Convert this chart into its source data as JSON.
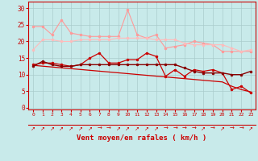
{
  "bg_color": "#c8eaea",
  "grid_color": "#aacccc",
  "xlabel": "Vent moyen/en rafales ( km/h )",
  "xlabel_color": "#cc0000",
  "tick_color": "#cc0000",
  "yticks": [
    0,
    5,
    10,
    15,
    20,
    25,
    30
  ],
  "ylim": [
    -0.5,
    32
  ],
  "xlim": [
    -0.5,
    23.5
  ],
  "arrows": [
    "↗",
    "↗",
    "↗",
    "↗",
    "↗",
    "↗",
    "↗",
    "→",
    "→",
    "↗",
    "↗",
    "↗",
    "↗",
    "↗",
    "→",
    "→",
    "→",
    "→",
    "↗",
    "→",
    "↗",
    "→",
    "→",
    "↗"
  ],
  "series": [
    {
      "color": "#ff9999",
      "linewidth": 0.8,
      "marker": "o",
      "markersize": 2.0,
      "y": [
        24.5,
        24.5,
        22.0,
        26.5,
        22.5,
        22.0,
        21.5,
        21.5,
        21.5,
        21.5,
        29.5,
        22.0,
        21.0,
        22.0,
        18.0,
        18.5,
        19.0,
        20.0,
        19.5,
        19.0,
        17.0,
        17.0,
        17.0,
        17.0
      ]
    },
    {
      "color": "#ffbbbb",
      "linewidth": 0.8,
      "marker": "o",
      "markersize": 2.0,
      "y": [
        17.5,
        20.5,
        20.5,
        20.0,
        20.0,
        20.5,
        20.5,
        20.5,
        20.5,
        21.0,
        21.0,
        21.0,
        21.0,
        20.5,
        20.5,
        20.5,
        19.5,
        19.0,
        19.0,
        19.0,
        19.0,
        18.0,
        17.0,
        17.5
      ]
    },
    {
      "color": "#cc0000",
      "linewidth": 0.9,
      "marker": "o",
      "markersize": 2.0,
      "y": [
        13.0,
        13.5,
        13.5,
        13.0,
        12.5,
        13.0,
        15.0,
        16.5,
        13.5,
        13.5,
        14.5,
        14.5,
        16.5,
        15.5,
        9.5,
        11.5,
        9.5,
        11.5,
        11.0,
        11.5,
        10.5,
        5.5,
        6.5,
        4.5
      ]
    },
    {
      "color": "#cc0000",
      "linewidth": 0.9,
      "marker": null,
      "markersize": 0,
      "y": [
        12.8,
        12.55,
        12.3,
        12.05,
        11.8,
        11.55,
        11.3,
        11.05,
        10.8,
        10.55,
        10.3,
        10.05,
        9.8,
        9.55,
        9.3,
        9.05,
        8.8,
        8.55,
        8.3,
        8.05,
        7.8,
        6.5,
        5.5,
        4.8
      ]
    },
    {
      "color": "#880000",
      "linewidth": 1.0,
      "marker": "o",
      "markersize": 2.0,
      "y": [
        12.5,
        14.0,
        13.0,
        12.5,
        12.5,
        13.0,
        13.0,
        13.0,
        13.0,
        13.0,
        13.0,
        13.0,
        13.0,
        13.0,
        13.0,
        13.0,
        12.0,
        11.0,
        10.5,
        10.5,
        10.5,
        10.0,
        10.0,
        11.0
      ]
    }
  ]
}
